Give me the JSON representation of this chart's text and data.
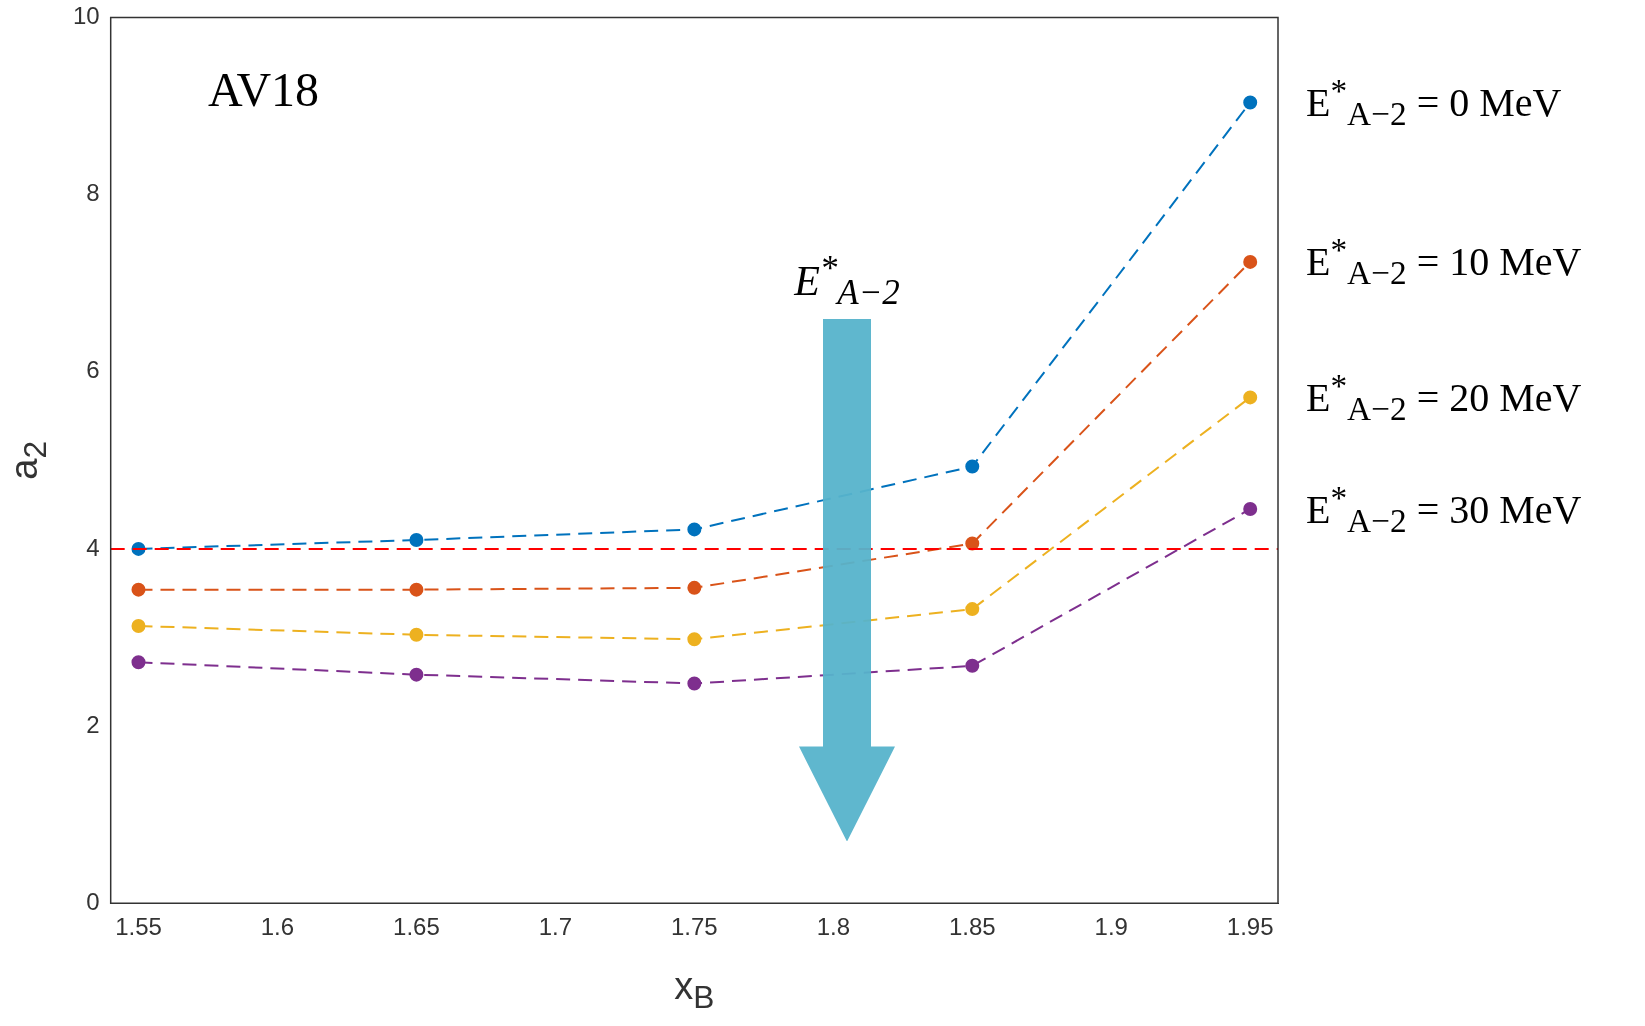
{
  "chart_data": {
    "type": "line",
    "xlabel": "x$_{B}$",
    "ylabel": "a$_{2}$",
    "x": [
      1.55,
      1.65,
      1.75,
      1.85,
      1.95
    ],
    "xlim": [
      1.54,
      1.96
    ],
    "xticks": [
      1.55,
      1.6,
      1.65,
      1.7,
      1.75,
      1.8,
      1.85,
      1.9,
      1.95
    ],
    "ylim": [
      0,
      10
    ],
    "yticks": [
      0,
      2,
      4,
      6,
      8,
      10
    ],
    "grid": false,
    "legend": false,
    "marker": "circle",
    "line_style": "dashed",
    "series": [
      {
        "name": "E$^{*}$$_{A−2}$ = 0  MeV",
        "color": "#0072bd",
        "values": [
          4.0,
          4.1,
          4.22,
          4.93,
          9.04
        ]
      },
      {
        "name": "E$^{*}$$_{A−2}$ = 10 MeV",
        "color": "#d95319",
        "values": [
          3.54,
          3.54,
          3.56,
          4.06,
          7.24
        ]
      },
      {
        "name": "E$^{*}$$_{A−2}$ = 20 MeV",
        "color": "#edb120",
        "values": [
          3.13,
          3.03,
          2.98,
          3.32,
          5.71
        ]
      },
      {
        "name": "E$^{*}$$_{A−2}$ = 30 MeV",
        "color": "#7e2f8e",
        "values": [
          2.72,
          2.58,
          2.48,
          2.68,
          4.45
        ]
      }
    ],
    "ref_lines": [
      {
        "axis": "y",
        "value": 4,
        "color": "#ff0000",
        "line_style": "dashed"
      }
    ],
    "annotations": [
      "AV18",
      "E$^{*}$$_{A−2}$"
    ]
  }
}
